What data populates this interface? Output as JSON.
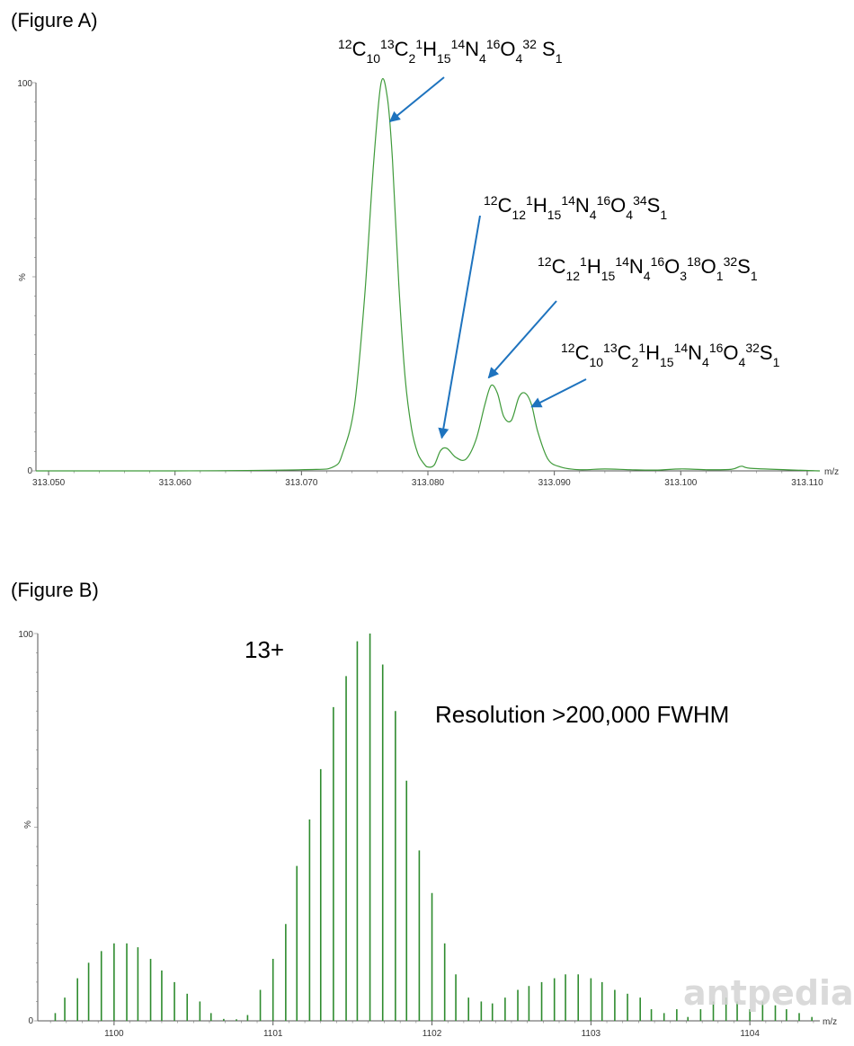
{
  "chart_data": [
    {
      "type": "line",
      "panel_label": "(Figure A)",
      "xlabel": "m/z",
      "ylabel": "%",
      "xlim": [
        313.049,
        313.111
      ],
      "ylim": [
        0,
        100
      ],
      "x_ticks": [
        "313.050",
        "313.060",
        "313.070",
        "313.080",
        "313.090",
        "313.100",
        "313.110"
      ],
      "y_ticks": [
        "0",
        "100"
      ],
      "series": [
        {
          "color": "#3f9a3a",
          "x": [
            313.049,
            313.06,
            313.07,
            313.0725,
            313.0733,
            313.0742,
            313.075,
            313.0757,
            313.0763,
            313.0768,
            313.0772,
            313.0777,
            313.0782,
            313.0787,
            313.0792,
            313.0797,
            313.08,
            313.0805,
            313.081,
            313.0815,
            313.0822,
            313.083,
            313.0838,
            313.0845,
            313.085,
            313.0855,
            313.086,
            313.0866,
            313.0872,
            313.0877,
            313.0882,
            313.0887,
            313.0895,
            313.0905,
            313.092,
            313.094,
            313.096,
            313.098,
            313.1,
            313.102,
            313.104,
            313.1048,
            313.1058,
            313.111
          ],
          "y": [
            0,
            0,
            0.3,
            1,
            5,
            17,
            45,
            79,
            100,
            96,
            80,
            48,
            24,
            11,
            4.5,
            1.8,
            1,
            1.5,
            5.2,
            5.8,
            3.5,
            3,
            8,
            17,
            22,
            20,
            14,
            13,
            19,
            20,
            17,
            10,
            3,
            1,
            0.3,
            0.5,
            0.3,
            0.2,
            0.5,
            0.3,
            0.4,
            1.2,
            0.6,
            0
          ]
        }
      ],
      "annotations": [
        {
          "id": "ann1",
          "label": "12C10 13C2 1H15 14N4 16O4 32S1",
          "target_x": 313.077,
          "target_y": 90
        },
        {
          "id": "ann2",
          "label": "12C12 1H15 14N4 16O4 34S1",
          "target_x": 313.0811,
          "target_y": 8.5
        },
        {
          "id": "ann3",
          "label": "12C12 1H15 14N4 16O3 18O1 32S1",
          "target_x": 313.0848,
          "target_y": 24
        },
        {
          "id": "ann4",
          "label": "12C10 13C2 1H15 14N4 16O4 32S1",
          "target_x": 313.0882,
          "target_y": 16.5
        }
      ]
    },
    {
      "type": "bar",
      "panel_label": "(Figure B)",
      "xlabel": "m/z",
      "ylabel": "%",
      "xlim": [
        1099.52,
        1104.44
      ],
      "ylim": [
        0,
        100
      ],
      "x_ticks": [
        "1100",
        "1101",
        "1102",
        "1103",
        "1104"
      ],
      "y_ticks": [
        "0",
        "100"
      ],
      "charge_label": "13+",
      "resolution_label": "Resolution >200,000 FWHM",
      "series": [
        {
          "color": "#2e8b2e",
          "x": [
            1099.63,
            1099.69,
            1099.77,
            1099.84,
            1099.92,
            1100.0,
            1100.08,
            1100.15,
            1100.23,
            1100.3,
            1100.38,
            1100.46,
            1100.54,
            1100.61,
            1100.69,
            1100.77,
            1100.84,
            1100.92,
            1101.0,
            1101.08,
            1101.15,
            1101.23,
            1101.3,
            1101.38,
            1101.46,
            1101.53,
            1101.61,
            1101.69,
            1101.77,
            1101.84,
            1101.92,
            1102.0,
            1102.08,
            1102.15,
            1102.23,
            1102.31,
            1102.38,
            1102.46,
            1102.54,
            1102.61,
            1102.69,
            1102.77,
            1102.84,
            1102.92,
            1103.0,
            1103.07,
            1103.15,
            1103.23,
            1103.31,
            1103.38,
            1103.46,
            1103.54,
            1103.61,
            1103.69,
            1103.77,
            1103.85,
            1103.92,
            1104.0,
            1104.08,
            1104.16,
            1104.23,
            1104.31,
            1104.39
          ],
          "y": [
            2,
            6,
            11,
            15,
            18,
            20,
            20,
            19,
            16,
            13,
            10,
            7,
            5,
            2,
            0.5,
            0.4,
            1.5,
            8,
            16,
            25,
            40,
            52,
            65,
            81,
            89,
            98,
            100,
            92,
            80,
            62,
            44,
            33,
            20,
            12,
            6,
            5,
            4.5,
            6,
            8,
            9,
            10,
            11,
            12,
            12,
            11,
            10,
            8,
            7,
            6,
            3,
            2,
            3,
            1,
            3,
            5,
            6,
            5,
            3,
            5,
            4,
            3,
            2,
            1
          ]
        }
      ]
    }
  ]
}
